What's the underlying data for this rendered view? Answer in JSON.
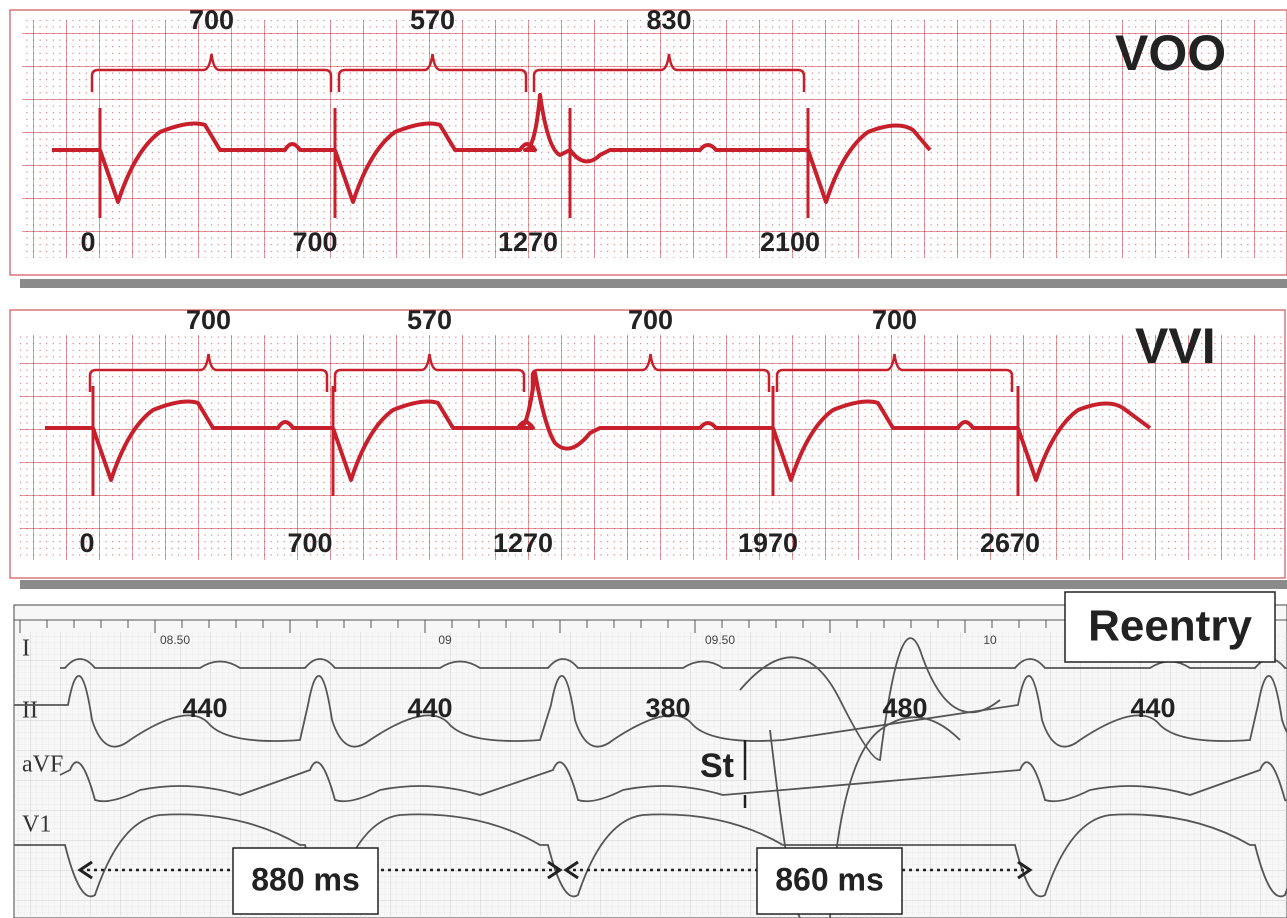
{
  "panels": [
    {
      "mode": "VOO",
      "intervals": [
        "700",
        "570",
        "830"
      ],
      "times": [
        "0",
        "700",
        "1270",
        "2100"
      ]
    },
    {
      "mode": "VVI",
      "intervals": [
        "700",
        "570",
        "700",
        "700"
      ],
      "times": [
        "0",
        "700",
        "1270",
        "1970",
        "2670"
      ]
    },
    {
      "mode": "Reentry",
      "leads": [
        "I",
        "II",
        "aVF",
        "V1"
      ],
      "axis_times": [
        "08.50",
        "09",
        "09.50",
        "10"
      ],
      "intervals": [
        "440",
        "440",
        "380",
        "480",
        "440"
      ],
      "stim": "St",
      "cycles": [
        "880 ms",
        "860 ms"
      ]
    }
  ]
}
